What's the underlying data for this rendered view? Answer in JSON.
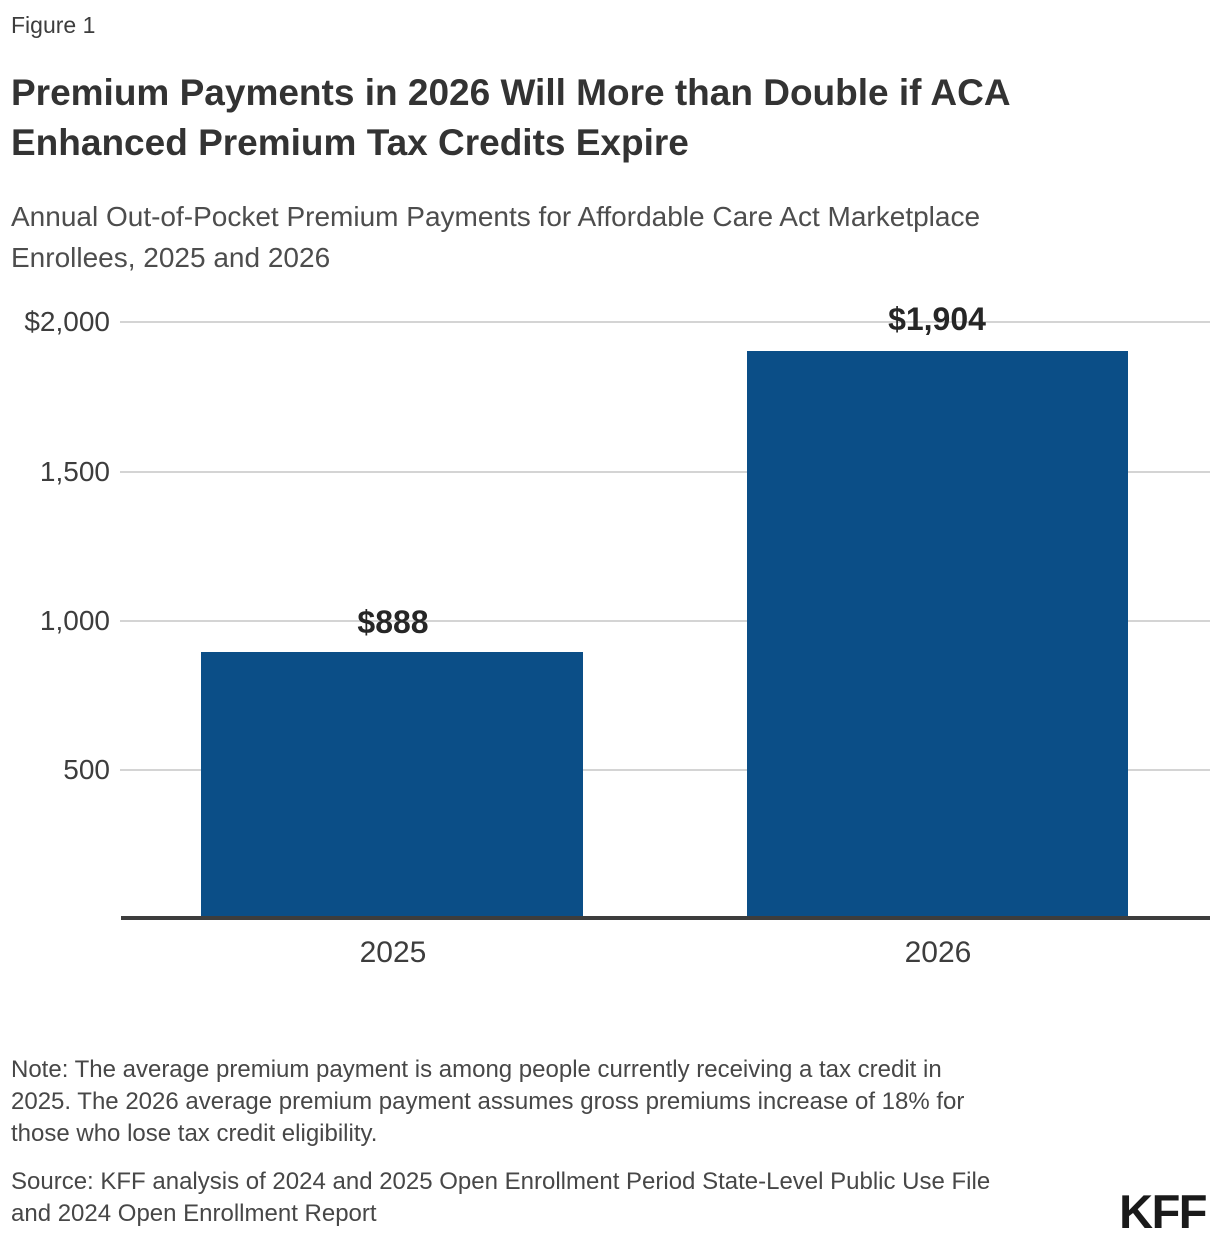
{
  "figure_label": "Figure 1",
  "title": {
    "lines": [
      "Premium Payments in 2026 Will More than Double if ACA",
      "Enhanced Premium Tax Credits Expire"
    ]
  },
  "subtitle": {
    "lines": [
      "Annual Out-of-Pocket Premium Payments for Affordable Care Act Marketplace",
      "Enrollees, 2025 and 2026"
    ]
  },
  "chart_data": {
    "type": "bar",
    "categories": [
      "2025",
      "2026"
    ],
    "values": [
      888,
      1904
    ],
    "value_labels": [
      "$888",
      "$1,904"
    ],
    "title": "Premium Payments in 2026 Will More than Double if ACA Enhanced Premium Tax Credits Expire",
    "subtitle": "Annual Out-of-Pocket Premium Payments for Affordable Care Act Marketplace Enrollees, 2025 and 2026",
    "xlabel": "",
    "ylabel": "",
    "ylim": [
      0,
      2000
    ],
    "y_ticks": [
      {
        "value": 2000,
        "label": "$2,000"
      },
      {
        "value": 1500,
        "label": "1,500"
      },
      {
        "value": 1000,
        "label": "1,000"
      },
      {
        "value": 500,
        "label": "500"
      }
    ],
    "grid": "horizontal gridlines on",
    "legend": "none",
    "bar_color": "#0B4E87"
  },
  "colors": {
    "bar": "#0B4E87",
    "axis": "#3d3d3d",
    "gridline": "#d4d4d4",
    "title_text": "#333333",
    "body_text": "#474747",
    "logo": "#1a1a1a"
  },
  "note": {
    "lines": [
      "Note: The average premium payment is among people currently receiving a tax credit in",
      "2025. The 2026 average premium payment assumes gross premiums increase of 18% for",
      "those who lose tax credit eligibility."
    ]
  },
  "source": {
    "lines": [
      "Source: KFF analysis of 2024 and 2025 Open Enrollment Period State-Level Public Use File",
      "and 2024 Open Enrollment Report"
    ]
  },
  "logo": "KFF"
}
